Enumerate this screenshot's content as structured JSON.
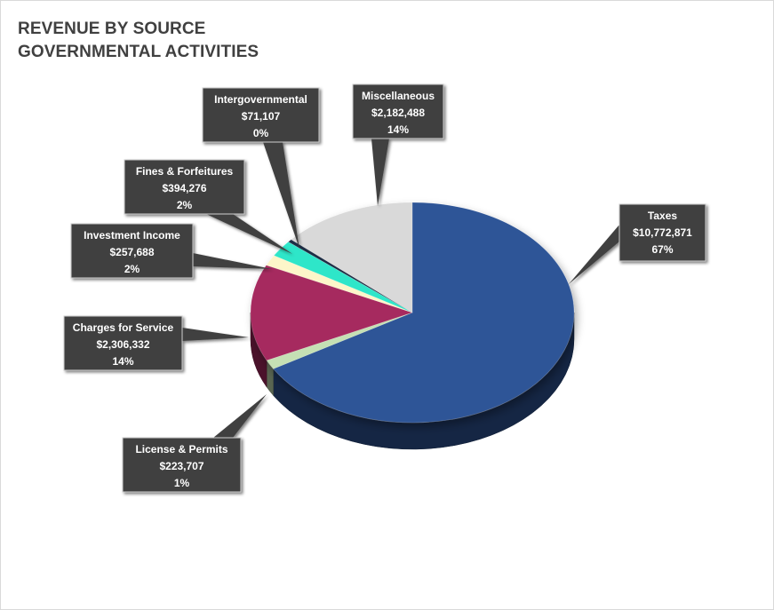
{
  "chart_data": {
    "type": "pie",
    "title_lines": [
      "REVENUE BY SOURCE",
      "GOVERNMENTAL ACTIVITIES"
    ],
    "slices": [
      {
        "label": "Taxes",
        "amount": "$10,772,871",
        "percent": "67%",
        "value": 10772871,
        "color": "#2f5597"
      },
      {
        "label": "License & Permits",
        "amount": "$223,707",
        "percent": "1%",
        "value": 223707,
        "color": "#c5e0b4"
      },
      {
        "label": "Charges for Service",
        "amount": "$2,306,332",
        "percent": "14%",
        "value": 2306332,
        "color": "#a6295f"
      },
      {
        "label": "Investment Income",
        "amount": "$257,688",
        "percent": "2%",
        "value": 257688,
        "color": "#fdf6c9"
      },
      {
        "label": "Fines & Forfeitures",
        "amount": "$394,276",
        "percent": "2%",
        "value": 394276,
        "color": "#2ee6c9"
      },
      {
        "label": "Intergovernmental",
        "amount": "$71,107",
        "percent": "0%",
        "value": 71107,
        "color": "#1f2d44"
      },
      {
        "label": "Miscellaneous",
        "amount": "$2,182,488",
        "percent": "14%",
        "value": 2182488,
        "color": "#d9d9d9"
      }
    ],
    "start_angle": "12 o'clock",
    "direction": "clockwise",
    "legend": "none",
    "style": "3D pie with dark callout labels"
  }
}
